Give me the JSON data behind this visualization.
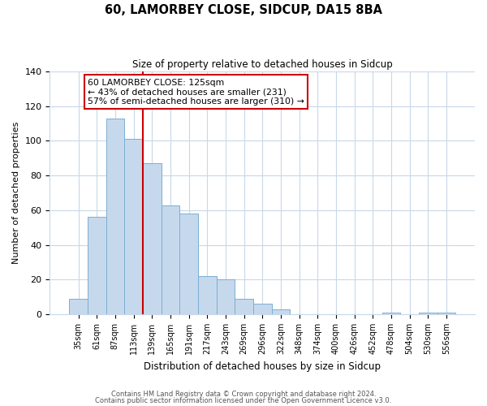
{
  "title": "60, LAMORBEY CLOSE, SIDCUP, DA15 8BA",
  "subtitle": "Size of property relative to detached houses in Sidcup",
  "xlabel": "Distribution of detached houses by size in Sidcup",
  "ylabel": "Number of detached properties",
  "bar_labels": [
    "35sqm",
    "61sqm",
    "87sqm",
    "113sqm",
    "139sqm",
    "165sqm",
    "191sqm",
    "217sqm",
    "243sqm",
    "269sqm",
    "296sqm",
    "322sqm",
    "348sqm",
    "374sqm",
    "400sqm",
    "426sqm",
    "452sqm",
    "478sqm",
    "504sqm",
    "530sqm",
    "556sqm"
  ],
  "bar_values": [
    9,
    56,
    113,
    101,
    87,
    63,
    58,
    22,
    20,
    9,
    6,
    3,
    0,
    0,
    0,
    0,
    0,
    1,
    0,
    1,
    1
  ],
  "bar_color": "#c6d9ec",
  "bar_edge_color": "#7aaed4",
  "vline_x_index": 3,
  "vline_color": "#cc0000",
  "annotation_text": "60 LAMORBEY CLOSE: 125sqm\n← 43% of detached houses are smaller (231)\n57% of semi-detached houses are larger (310) →",
  "annotation_box_color": "#ffffff",
  "annotation_box_edge": "#cc0000",
  "ylim": [
    0,
    140
  ],
  "yticks": [
    0,
    20,
    40,
    60,
    80,
    100,
    120,
    140
  ],
  "footer_line1": "Contains HM Land Registry data © Crown copyright and database right 2024.",
  "footer_line2": "Contains public sector information licensed under the Open Government Licence v3.0.",
  "background_color": "#ffffff",
  "grid_color": "#c8d8e8"
}
